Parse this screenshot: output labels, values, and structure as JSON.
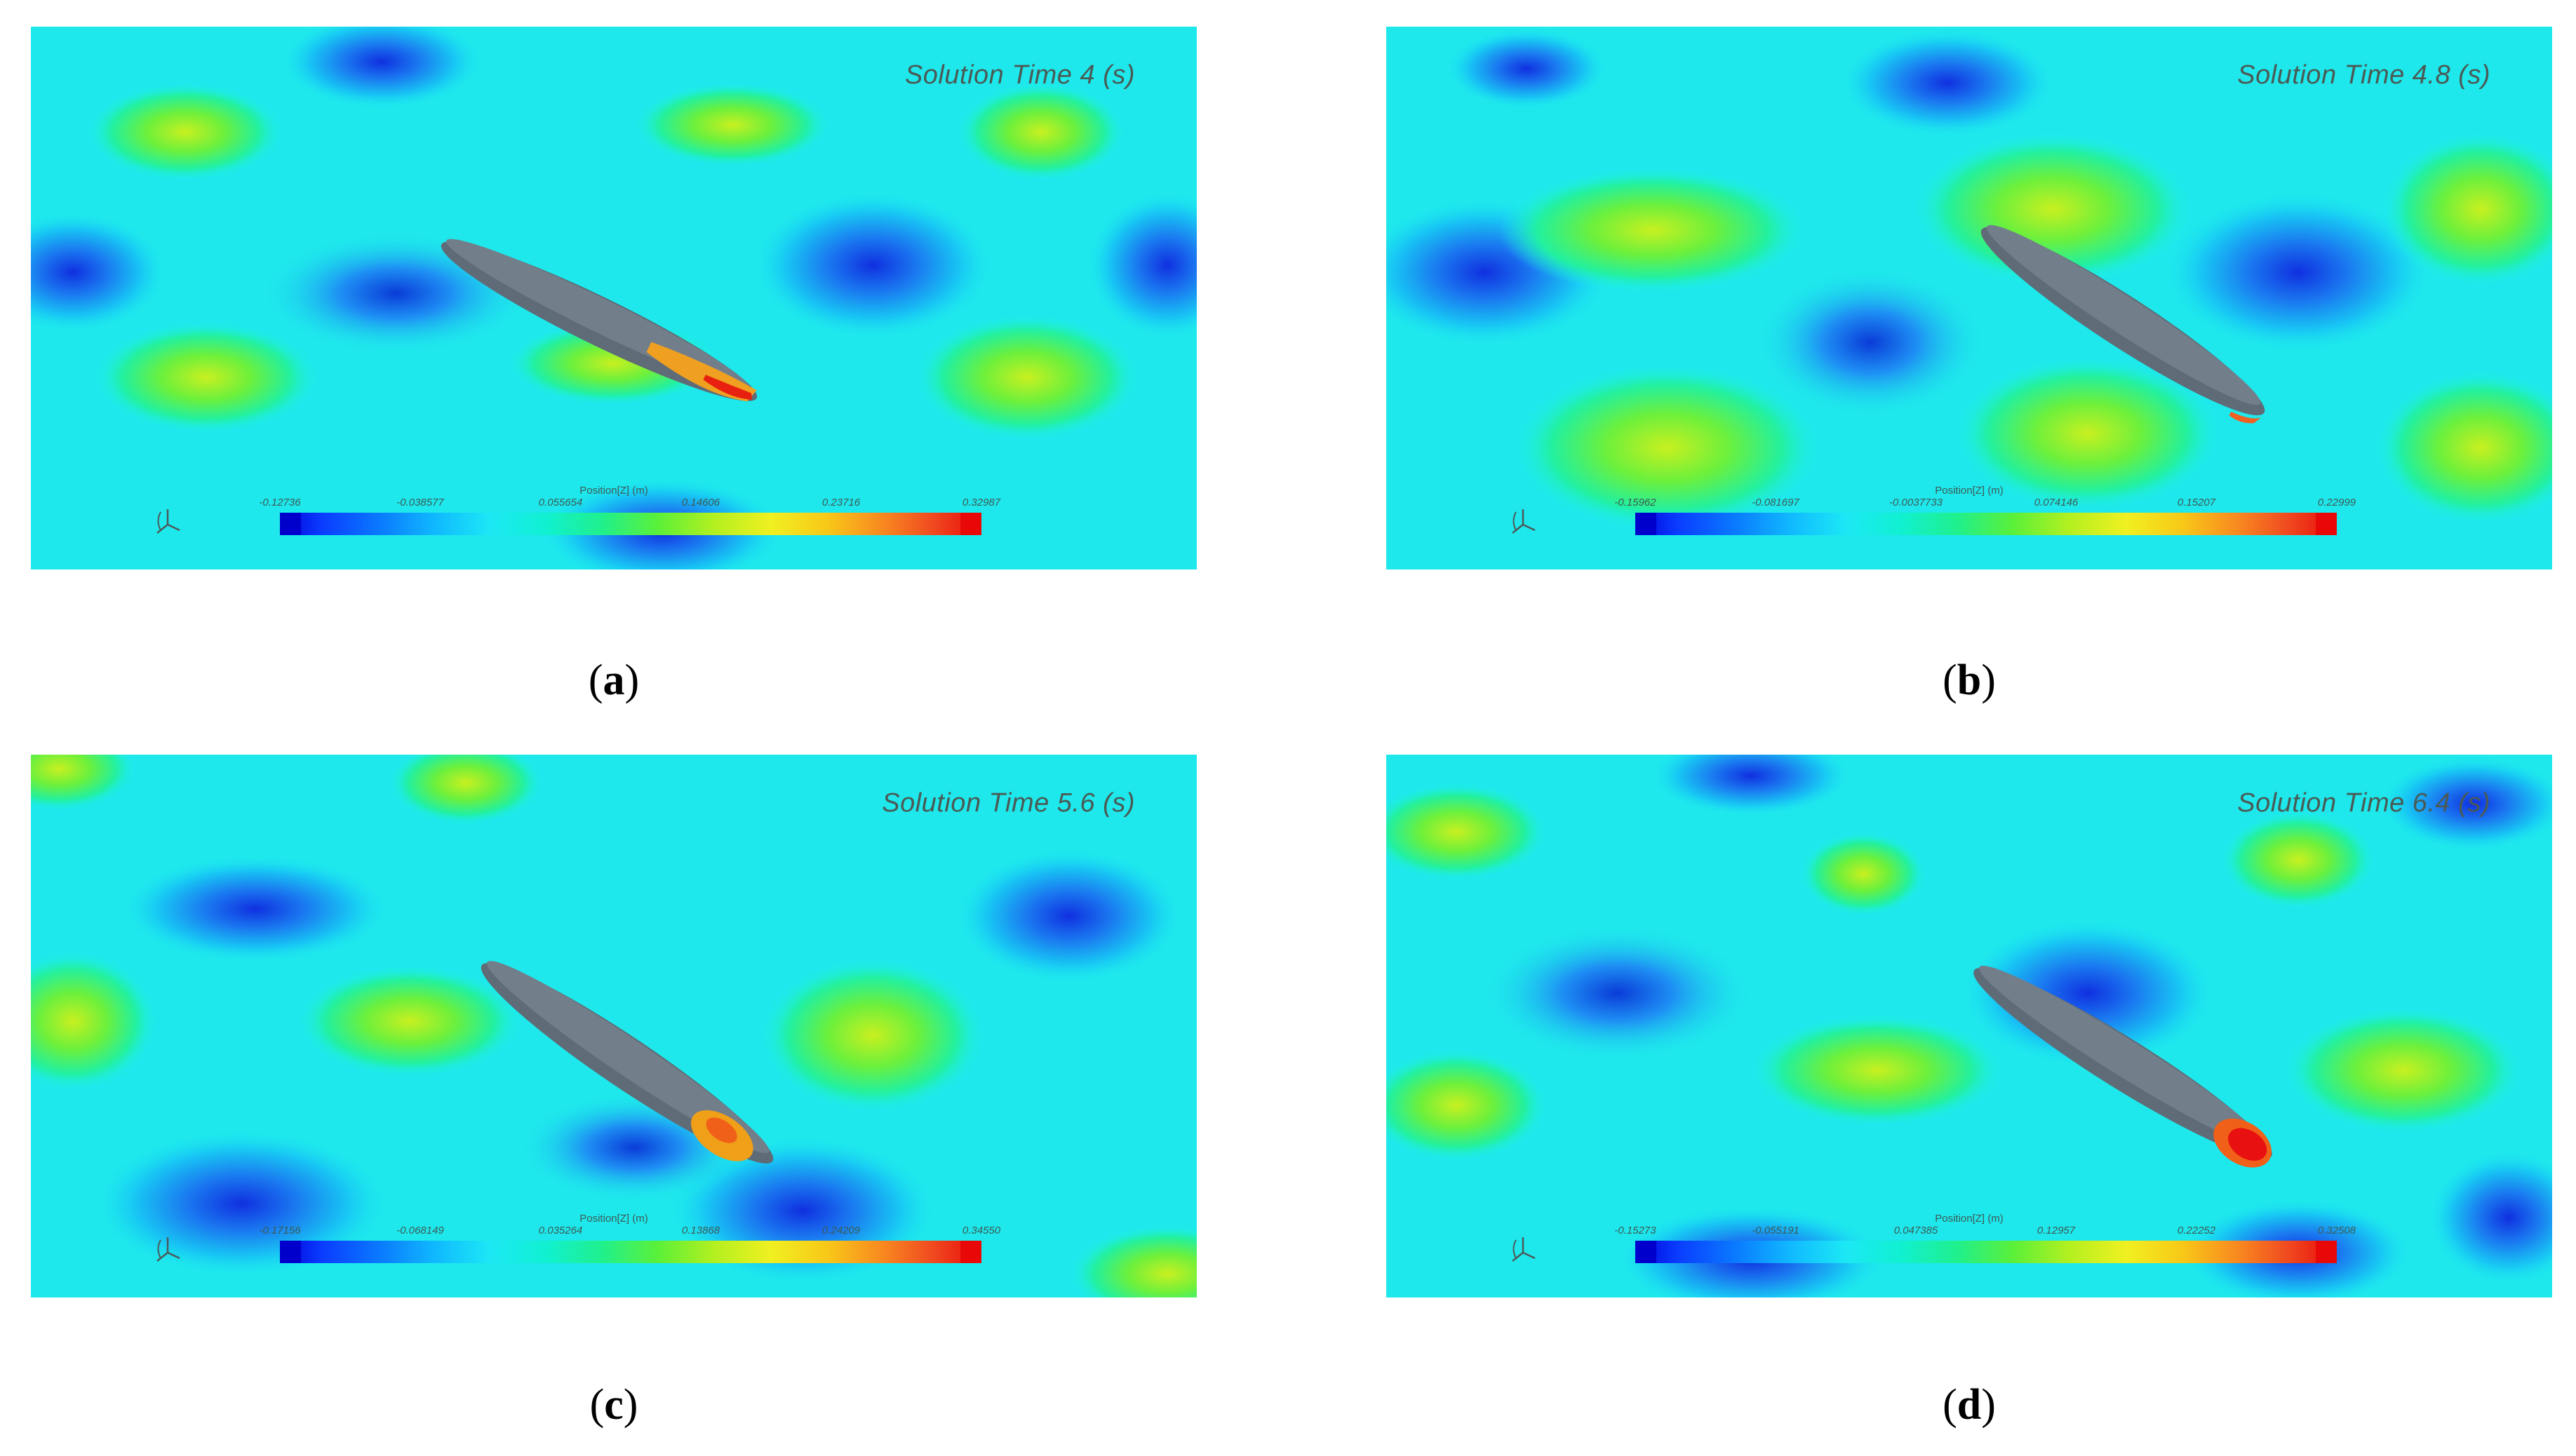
{
  "figure": {
    "panels": [
      {
        "label_letter": "a",
        "solution_time": "Solution Time 4 (s)",
        "colorbar_title": "Position[Z] (m)",
        "ticks": [
          "-0.12736",
          "-0.038577",
          "0.055654",
          "0.14606",
          "0.23716",
          "0.32987"
        ]
      },
      {
        "label_letter": "b",
        "solution_time": "Solution Time 4.8 (s)",
        "colorbar_title": "Position[Z] (m)",
        "ticks": [
          "-0.15962",
          "-0.081697",
          "-0.0037733",
          "0.074146",
          "0.15207",
          "0.22999"
        ]
      },
      {
        "label_letter": "c",
        "solution_time": "Solution Time 5.6 (s)",
        "colorbar_title": "Position[Z] (m)",
        "ticks": [
          "-0.17156",
          "-0.068149",
          "0.035264",
          "0.13868",
          "0.24209",
          "0.34550"
        ]
      },
      {
        "label_letter": "d",
        "solution_time": "Solution Time 6.4 (s)",
        "colorbar_title": "Position[Z] (m)",
        "ticks": [
          "-0.15273",
          "-0.055191",
          "0.047385",
          "0.12957",
          "0.22252",
          "0.32508"
        ]
      }
    ],
    "captions": [
      {
        "open": "(",
        "letter": "a",
        "close": ")"
      },
      {
        "open": "(",
        "letter": "b",
        "close": ")"
      },
      {
        "open": "(",
        "letter": "c",
        "close": ")"
      },
      {
        "open": "(",
        "letter": "d",
        "close": ")"
      }
    ],
    "colormap": [
      "#0000d8",
      "#0a78ff",
      "#1ce8f5",
      "#20f08c",
      "#b4f020",
      "#f0f020",
      "#f88820",
      "#e80a0a"
    ],
    "ship_color": "#5f6b76"
  }
}
